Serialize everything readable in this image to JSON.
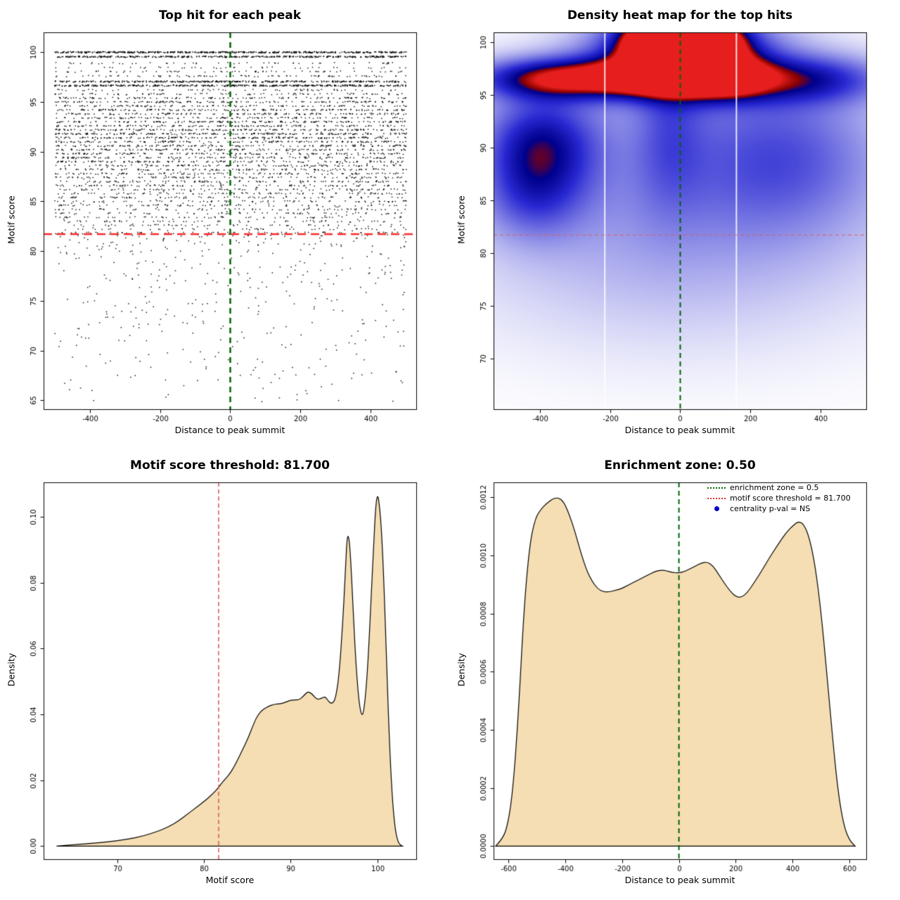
{
  "accent_colors": {
    "summit_line_green": "#006400",
    "threshold_line_red": "#ff2a2a",
    "soft_threshold_red": "#e05c5c",
    "density_fill_wheat": "#f5deb3",
    "centrality_point_blue": "#0000cd"
  },
  "chart_data": [
    {
      "type": "scatter",
      "title": "Top hit for each peak",
      "xlabel": "Distance to peak summit",
      "ylabel": "Motif score",
      "xlim": [
        -532,
        530
      ],
      "ylim": [
        64.1,
        102
      ],
      "data_xrange": [
        -500,
        502
      ],
      "xticks": [
        {
          "v": -400,
          "l": "-400"
        },
        {
          "v": -200,
          "l": "-200"
        },
        {
          "v": 0,
          "l": "0"
        },
        {
          "v": 200,
          "l": "200"
        },
        {
          "v": 400,
          "l": "400"
        }
      ],
      "yticks": [
        {
          "v": 65,
          "l": "65"
        },
        {
          "v": 70,
          "l": "70"
        },
        {
          "v": 75,
          "l": "75"
        },
        {
          "v": 80,
          "l": "80"
        },
        {
          "v": 85,
          "l": "85"
        },
        {
          "v": 90,
          "l": "90"
        },
        {
          "v": 95,
          "l": "95"
        },
        {
          "v": 100,
          "l": "100"
        }
      ],
      "rows": [
        [
          100.0,
          520
        ],
        [
          99.55,
          430
        ],
        [
          98.9,
          50
        ],
        [
          98.45,
          42
        ],
        [
          98.05,
          65
        ],
        [
          97.6,
          85
        ],
        [
          97.05,
          380
        ],
        [
          96.65,
          420
        ],
        [
          96.2,
          65
        ],
        [
          95.8,
          85
        ],
        [
          95.4,
          120
        ],
        [
          95.0,
          150
        ],
        [
          94.6,
          115
        ],
        [
          94.2,
          160
        ],
        [
          93.8,
          145
        ],
        [
          93.4,
          125
        ],
        [
          93.0,
          165
        ],
        [
          92.6,
          145
        ],
        [
          92.2,
          175
        ],
        [
          91.8,
          195
        ],
        [
          91.4,
          185
        ],
        [
          91.0,
          150
        ],
        [
          90.6,
          140
        ],
        [
          90.2,
          140
        ],
        [
          89.8,
          135
        ],
        [
          89.4,
          130
        ],
        [
          89.0,
          128
        ],
        [
          88.6,
          120
        ],
        [
          88.2,
          115
        ],
        [
          87.8,
          110
        ],
        [
          87.4,
          105
        ],
        [
          87.0,
          100
        ],
        [
          86.6,
          95
        ],
        [
          86.2,
          90
        ],
        [
          85.8,
          86
        ],
        [
          85.4,
          82
        ],
        [
          85.0,
          78
        ],
        [
          84.6,
          72
        ],
        [
          84.2,
          66
        ],
        [
          83.8,
          62
        ],
        [
          83.4,
          57
        ],
        [
          83.0,
          52
        ],
        [
          82.6,
          47
        ],
        [
          82.2,
          44
        ]
      ],
      "low_band": {
        "y_max": 81.9,
        "y_min": 64.8,
        "count": 500,
        "power": 2.2
      },
      "mid_fill": {
        "y_min": 82.0,
        "y_max": 92.0,
        "count": 260
      },
      "vline": {
        "x": 0,
        "color": "#006400",
        "width": 2.5,
        "dash": [
          8,
          6
        ]
      },
      "hline": {
        "y": 81.7,
        "color": "#ff2a2a",
        "width": 2.5,
        "dash": [
          12,
          7
        ]
      }
    },
    {
      "type": "heatmap",
      "title": "Density heat map for the top hits",
      "xlabel": "Distance to peak summit",
      "ylabel": "Motif score",
      "xlim": [
        -532,
        530
      ],
      "ylim": [
        65.2,
        100.9
      ],
      "xticks": [
        {
          "v": -400,
          "l": "-400"
        },
        {
          "v": -200,
          "l": "-200"
        },
        {
          "v": 0,
          "l": "0"
        },
        {
          "v": 200,
          "l": "200"
        },
        {
          "v": 400,
          "l": "400"
        }
      ],
      "yticks": [
        {
          "v": 70,
          "l": "70"
        },
        {
          "v": 75,
          "l": "75"
        },
        {
          "v": 80,
          "l": "80"
        },
        {
          "v": 85,
          "l": "85"
        },
        {
          "v": 90,
          "l": "90"
        },
        {
          "v": 95,
          "l": "95"
        },
        {
          "v": 100,
          "l": "100"
        }
      ],
      "gaussians": [
        [
          5,
          99.9,
          85,
          1.5,
          3.0
        ],
        [
          5,
          99.3,
          170,
          2.6,
          0.9
        ],
        [
          -340,
          96.6,
          170,
          1.35,
          0.85
        ],
        [
          -90,
          96.6,
          110,
          1.25,
          0.6
        ],
        [
          115,
          96.6,
          95,
          1.35,
          0.8
        ],
        [
          360,
          96.5,
          160,
          1.6,
          0.55
        ],
        [
          -400,
          90.5,
          110,
          3.2,
          0.55
        ],
        [
          -420,
          85.5,
          100,
          3.0,
          0.32
        ],
        [
          0,
          88.5,
          460,
          7.0,
          0.26
        ],
        [
          0,
          78.5,
          460,
          6.5,
          0.14
        ],
        [
          300,
          89.5,
          190,
          5.0,
          0.28
        ],
        [
          -30,
          92.5,
          70,
          5.5,
          0.22
        ]
      ],
      "colormap": [
        [
          0,
          "#ffffff"
        ],
        [
          0.6,
          "#2828d2"
        ],
        [
          0.8,
          "#00008c"
        ],
        [
          0.88,
          "#8b0000"
        ],
        [
          1,
          "#e61e1e"
        ]
      ],
      "white_gaps": [
        -215,
        160
      ],
      "vline": {
        "x": 0,
        "color": "#006400",
        "width": 2,
        "dash": [
          7,
          5
        ]
      },
      "hline": {
        "y": 81.7,
        "color": "#e05c5c",
        "width": 1.2,
        "dash": [
          5,
          4
        ]
      }
    },
    {
      "type": "density",
      "title": "Motif score threshold: 81.700",
      "xlabel": "Motif score",
      "ylabel": "Density",
      "xlim": [
        61.5,
        104.5
      ],
      "ylim": [
        -0.004,
        0.1105
      ],
      "xticks": [
        {
          "v": 70,
          "l": "70"
        },
        {
          "v": 80,
          "l": "80"
        },
        {
          "v": 90,
          "l": "90"
        },
        {
          "v": 100,
          "l": "100"
        }
      ],
      "yticks": [
        {
          "v": 0,
          "l": "0.00"
        },
        {
          "v": 0.02,
          "l": "0.02"
        },
        {
          "v": 0.04,
          "l": "0.04"
        },
        {
          "v": 0.06,
          "l": "0.06"
        },
        {
          "v": 0.08,
          "l": "0.08"
        },
        {
          "v": 0.1,
          "l": "0.10"
        }
      ],
      "fill": "#f5deb3",
      "points": [
        [
          63,
          0
        ],
        [
          65,
          0.0004
        ],
        [
          67,
          0.0008
        ],
        [
          69,
          0.0013
        ],
        [
          71,
          0.002
        ],
        [
          73,
          0.003
        ],
        [
          75,
          0.0048
        ],
        [
          76,
          0.006
        ],
        [
          77,
          0.0075
        ],
        [
          78,
          0.0095
        ],
        [
          79,
          0.0115
        ],
        [
          80,
          0.0135
        ],
        [
          81,
          0.0158
        ],
        [
          81.7,
          0.0178
        ],
        [
          82,
          0.019
        ],
        [
          82.5,
          0.0205
        ],
        [
          83,
          0.022
        ],
        [
          83.5,
          0.0242
        ],
        [
          84,
          0.0268
        ],
        [
          84.5,
          0.0295
        ],
        [
          85,
          0.0322
        ],
        [
          85.5,
          0.0355
        ],
        [
          86,
          0.0388
        ],
        [
          86.5,
          0.0408
        ],
        [
          87,
          0.0418
        ],
        [
          87.5,
          0.0425
        ],
        [
          88,
          0.043
        ],
        [
          88.5,
          0.0432
        ],
        [
          89,
          0.0433
        ],
        [
          89.5,
          0.0438
        ],
        [
          90,
          0.0443
        ],
        [
          90.5,
          0.0444
        ],
        [
          91,
          0.0444
        ],
        [
          91.5,
          0.0456
        ],
        [
          92,
          0.047
        ],
        [
          92.5,
          0.0462
        ],
        [
          93,
          0.0445
        ],
        [
          93.5,
          0.0448
        ],
        [
          94,
          0.0455
        ],
        [
          94.4,
          0.0438
        ],
        [
          94.8,
          0.0432
        ],
        [
          95.2,
          0.0448
        ],
        [
          95.6,
          0.052
        ],
        [
          96,
          0.067
        ],
        [
          96.3,
          0.082
        ],
        [
          96.5,
          0.0935
        ],
        [
          96.7,
          0.0945
        ],
        [
          96.9,
          0.089
        ],
        [
          97.2,
          0.073
        ],
        [
          97.5,
          0.057
        ],
        [
          97.8,
          0.0465
        ],
        [
          98,
          0.042
        ],
        [
          98.2,
          0.0398
        ],
        [
          98.4,
          0.0402
        ],
        [
          98.7,
          0.047
        ],
        [
          99,
          0.059
        ],
        [
          99.3,
          0.076
        ],
        [
          99.6,
          0.092
        ],
        [
          99.8,
          0.1025
        ],
        [
          100,
          0.1068
        ],
        [
          100.2,
          0.105
        ],
        [
          100.5,
          0.096
        ],
        [
          100.8,
          0.078
        ],
        [
          101.1,
          0.054
        ],
        [
          101.4,
          0.032
        ],
        [
          101.7,
          0.016
        ],
        [
          102,
          0.0065
        ],
        [
          102.3,
          0.002
        ],
        [
          102.6,
          0.0004
        ],
        [
          102.9,
          0
        ]
      ],
      "vline": {
        "x": 81.7,
        "color": "#e05c5c",
        "width": 1.6,
        "dash": [
          6,
          4
        ]
      }
    },
    {
      "type": "density",
      "title": "Enrichment zone: 0.50",
      "xlabel": "Distance to peak summit",
      "ylabel": "Density",
      "xlim": [
        -652,
        659
      ],
      "ylim": [
        -4.5e-05,
        0.001252
      ],
      "xticks": [
        {
          "v": -600,
          "l": "-600"
        },
        {
          "v": -400,
          "l": "-400"
        },
        {
          "v": -200,
          "l": "-200"
        },
        {
          "v": 0,
          "l": "0"
        },
        {
          "v": 200,
          "l": "200"
        },
        {
          "v": 400,
          "l": "400"
        },
        {
          "v": 600,
          "l": "600"
        }
      ],
      "yticks": [
        {
          "v": 0,
          "l": "0.0000"
        },
        {
          "v": 0.0002,
          "l": "0.0002"
        },
        {
          "v": 0.0004,
          "l": "0.0004"
        },
        {
          "v": 0.0006,
          "l": "0.0006"
        },
        {
          "v": 0.0008,
          "l": "0.0008"
        },
        {
          "v": 0.001,
          "l": "0.0010"
        },
        {
          "v": 0.0012,
          "l": "0.0012"
        }
      ],
      "fill": "#f5deb3",
      "points": [
        [
          -645,
          0
        ],
        [
          -625,
          2e-05
        ],
        [
          -605,
          6e-05
        ],
        [
          -585,
          0.00018
        ],
        [
          -565,
          0.00045
        ],
        [
          -545,
          0.00082
        ],
        [
          -525,
          0.00104
        ],
        [
          -505,
          0.00113
        ],
        [
          -485,
          0.00116
        ],
        [
          -465,
          0.00118
        ],
        [
          -445,
          0.001195
        ],
        [
          -425,
          0.0012
        ],
        [
          -405,
          0.001185
        ],
        [
          -385,
          0.00114
        ],
        [
          -365,
          0.00108
        ],
        [
          -345,
          0.00101
        ],
        [
          -325,
          0.00095
        ],
        [
          -305,
          0.00091
        ],
        [
          -285,
          0.000885
        ],
        [
          -265,
          0.000875
        ],
        [
          -245,
          0.000875
        ],
        [
          -225,
          0.00088
        ],
        [
          -205,
          0.000885
        ],
        [
          -185,
          0.000895
        ],
        [
          -165,
          0.000905
        ],
        [
          -145,
          0.000915
        ],
        [
          -125,
          0.000925
        ],
        [
          -105,
          0.000935
        ],
        [
          -85,
          0.000945
        ],
        [
          -65,
          0.00095
        ],
        [
          -45,
          0.000948
        ],
        [
          -25,
          0.000942
        ],
        [
          0,
          0.00094
        ],
        [
          20,
          0.000945
        ],
        [
          40,
          0.000955
        ],
        [
          60,
          0.000965
        ],
        [
          80,
          0.000975
        ],
        [
          100,
          0.000978
        ],
        [
          120,
          0.000965
        ],
        [
          140,
          0.000935
        ],
        [
          160,
          0.000905
        ],
        [
          180,
          0.000878
        ],
        [
          200,
          0.000858
        ],
        [
          220,
          0.000856
        ],
        [
          240,
          0.000872
        ],
        [
          260,
          0.0009
        ],
        [
          280,
          0.00093
        ],
        [
          300,
          0.000962
        ],
        [
          320,
          0.000995
        ],
        [
          340,
          0.001025
        ],
        [
          360,
          0.001055
        ],
        [
          380,
          0.001082
        ],
        [
          400,
          0.001102
        ],
        [
          420,
          0.001118
        ],
        [
          440,
          0.001108
        ],
        [
          460,
          0.001058
        ],
        [
          480,
          0.000962
        ],
        [
          500,
          0.000805
        ],
        [
          520,
          0.0006
        ],
        [
          540,
          0.000378
        ],
        [
          560,
          0.000185
        ],
        [
          580,
          7e-05
        ],
        [
          600,
          2e-05
        ],
        [
          620,
          0
        ]
      ],
      "vline": {
        "x": 0,
        "color": "#006400",
        "width": 2,
        "dash": [
          7,
          5
        ]
      },
      "legend": {
        "items": [
          {
            "label": "enrichment zone = 0.5",
            "type": "dotted",
            "color": "#006400"
          },
          {
            "label": "motif score threshold = 81.700",
            "type": "dotted",
            "color": "#e03030"
          },
          {
            "label": "centrality p-val = NS",
            "type": "point",
            "color": "#0000cd"
          }
        ]
      }
    }
  ]
}
